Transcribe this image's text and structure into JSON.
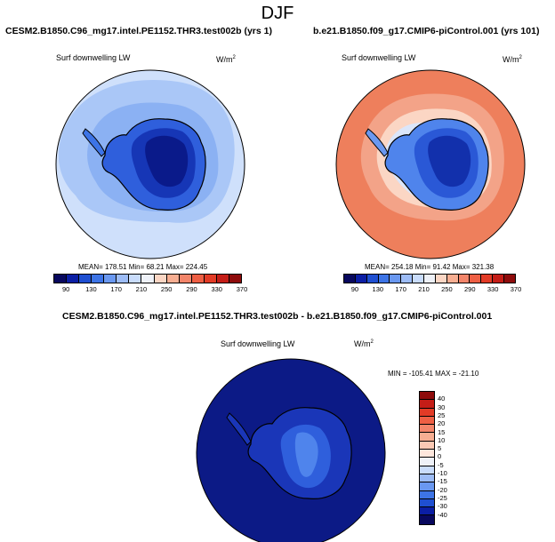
{
  "page": {
    "title": "DJF"
  },
  "panels": {
    "left": {
      "title": "CESM2.B1850.C96_mg17.intel.PE1152.THR3.test002b (yrs 1)",
      "variable": "Surf downwelling LW",
      "units": "W/m",
      "units_exp": "2",
      "stats": "MEAN= 178.51  Min= 68.21  Max= 224.45"
    },
    "right": {
      "title": "b.e21.B1850.f09_g17.CMIP6-piControl.001 (yrs 101)",
      "variable": "Surf downwelling LW",
      "units": "W/m",
      "units_exp": "2",
      "stats": "MEAN= 254.18  Min= 91.42  Max= 321.38"
    },
    "diff": {
      "title": "CESM2.B1850.C96_mg17.intel.PE1152.THR3.test002b - b.e21.B1850.f09_g17.CMIP6-piControl.001",
      "variable": "Surf downwelling LW",
      "units": "W/m",
      "units_exp": "2",
      "stats": "MIN = -105.41  MAX = -21.10"
    }
  },
  "chart_data": [
    {
      "type": "heatmap",
      "projection": "south-polar-stereographic",
      "title": "CESM2.B1850.C96_mg17.intel.PE1152.THR3.test002b (yrs 1)",
      "variable": "Surf downwelling LW",
      "units": "W/m2",
      "mean": 178.51,
      "min": 68.21,
      "max": 224.45,
      "colorbar_ticks": [
        90,
        130,
        170,
        210,
        250,
        290,
        330,
        370
      ],
      "colorbar_colors": [
        "#08085e",
        "#0b1ea4",
        "#1f4fd1",
        "#3d74e6",
        "#6a98f0",
        "#9dbcf6",
        "#c9dcfb",
        "#eef1f8",
        "#fbd6c4",
        "#f7ae92",
        "#f3856a",
        "#ee5f44",
        "#e23b26",
        "#c41d17",
        "#8e0b0b"
      ]
    },
    {
      "type": "heatmap",
      "projection": "south-polar-stereographic",
      "title": "b.e21.B1850.f09_g17.CMIP6-piControl.001 (yrs 101)",
      "variable": "Surf downwelling LW",
      "units": "W/m2",
      "mean": 254.18,
      "min": 91.42,
      "max": 321.38,
      "colorbar_ticks": [
        90,
        130,
        170,
        210,
        250,
        290,
        330,
        370
      ],
      "colorbar_colors": [
        "#08085e",
        "#0b1ea4",
        "#1f4fd1",
        "#3d74e6",
        "#6a98f0",
        "#9dbcf6",
        "#c9dcfb",
        "#eef1f8",
        "#fbd6c4",
        "#f7ae92",
        "#f3856a",
        "#ee5f44",
        "#e23b26",
        "#c41d17",
        "#8e0b0b"
      ]
    },
    {
      "type": "heatmap",
      "projection": "south-polar-stereographic",
      "title": "CESM2.B1850.C96_mg17.intel.PE1152.THR3.test002b - b.e21.B1850.f09_g17.CMIP6-piControl.001",
      "variable": "Surf downwelling LW",
      "units": "W/m2",
      "min": -105.41,
      "max": -21.1,
      "colorbar_ticks": [
        40,
        30,
        25,
        20,
        15,
        10,
        5,
        0,
        -5,
        -10,
        -15,
        -20,
        -25,
        -30,
        -40
      ],
      "colorbar_colors": [
        "#8e0b0b",
        "#c41d17",
        "#e23b26",
        "#ee5f44",
        "#f3856a",
        "#f7ae92",
        "#fbc9b4",
        "#fde6dc",
        "#eef1f8",
        "#c9dcfb",
        "#9dbcf6",
        "#6a98f0",
        "#3d74e6",
        "#1f4fd1",
        "#0b1ea4",
        "#08085e"
      ]
    }
  ]
}
